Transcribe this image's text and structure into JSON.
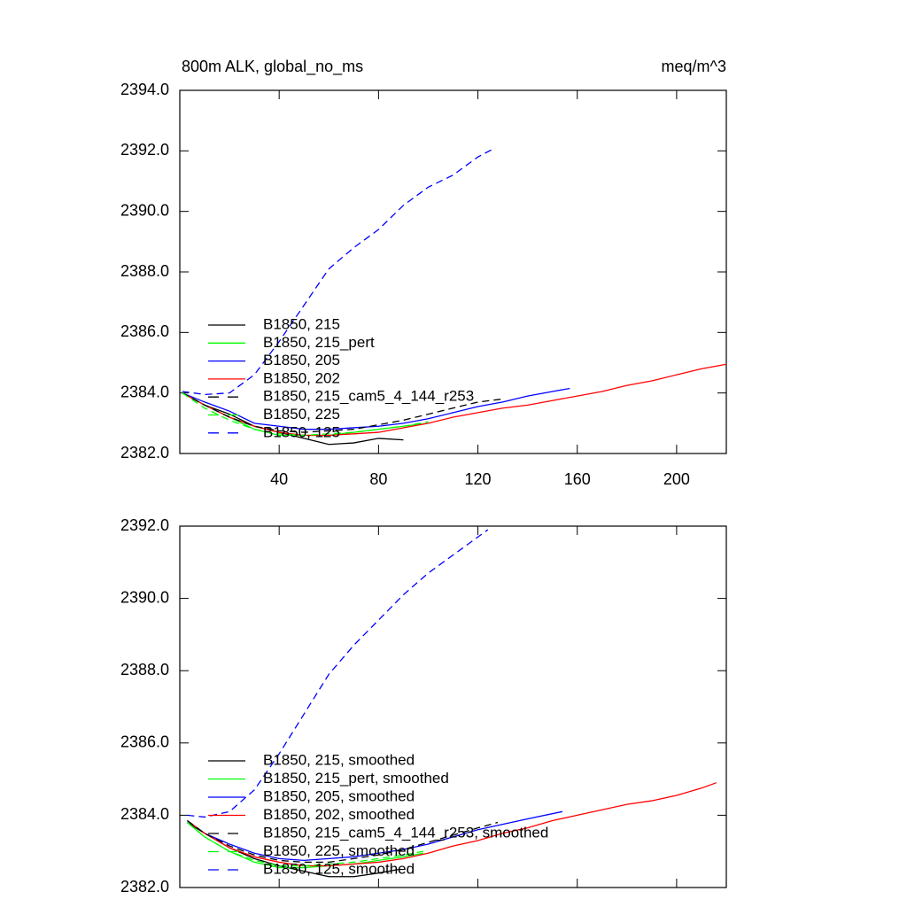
{
  "chart_data": [
    {
      "type": "line",
      "title": "800m ALK, global_no_ms",
      "units": "meq/m^3",
      "xlim": [
        0,
        220
      ],
      "xticks": [
        40,
        80,
        120,
        160,
        200
      ],
      "ylim": [
        2382,
        2394
      ],
      "yticks": [
        {
          "value": 2382,
          "label": "2382.0"
        },
        {
          "value": 2384,
          "label": "2384.0"
        },
        {
          "value": 2386,
          "label": "2386.0"
        },
        {
          "value": 2388,
          "label": "2388.0"
        },
        {
          "value": 2390,
          "label": "2390.0"
        },
        {
          "value": 2392,
          "label": "2392.0"
        },
        {
          "value": 2394,
          "label": "2394.0"
        }
      ],
      "legend": "lower-left",
      "series": [
        {
          "name": "B1850, 215",
          "color": "#000000",
          "dash": "solid",
          "x": [
            1,
            10,
            20,
            30,
            40,
            50,
            60,
            70,
            80,
            90
          ],
          "values": [
            2384.0,
            2383.6,
            2383.3,
            2382.9,
            2382.7,
            2382.5,
            2382.3,
            2382.35,
            2382.5,
            2382.45
          ]
        },
        {
          "name": "B1850, 215_pert",
          "color": "#00ff00",
          "dash": "solid",
          "x": [
            1,
            10,
            20,
            30,
            40,
            50,
            60,
            70,
            80,
            90,
            100
          ],
          "values": [
            2384.0,
            2383.6,
            2383.2,
            2382.8,
            2382.6,
            2382.6,
            2382.6,
            2382.7,
            2382.8,
            2382.9,
            2383.0
          ]
        },
        {
          "name": "B1850, 205",
          "color": "#0000ff",
          "dash": "solid",
          "x": [
            1,
            10,
            20,
            30,
            40,
            50,
            60,
            70,
            80,
            90,
            100,
            110,
            120,
            130,
            140,
            150,
            157
          ],
          "values": [
            2384.0,
            2383.7,
            2383.4,
            2383.0,
            2382.9,
            2382.8,
            2382.8,
            2382.85,
            2382.9,
            2383.0,
            2383.15,
            2383.35,
            2383.55,
            2383.7,
            2383.9,
            2384.05,
            2384.15
          ]
        },
        {
          "name": "B1850, 202",
          "color": "#ff0000",
          "dash": "solid",
          "x": [
            1,
            10,
            20,
            30,
            40,
            50,
            60,
            70,
            80,
            90,
            100,
            110,
            120,
            130,
            140,
            150,
            160,
            170,
            180,
            190,
            200,
            210,
            220
          ],
          "values": [
            2384.0,
            2383.6,
            2383.2,
            2382.9,
            2382.7,
            2382.6,
            2382.6,
            2382.65,
            2382.7,
            2382.85,
            2383.0,
            2383.2,
            2383.35,
            2383.5,
            2383.6,
            2383.75,
            2383.9,
            2384.05,
            2384.25,
            2384.4,
            2384.6,
            2384.8,
            2384.95
          ]
        },
        {
          "name": "B1850, 215_cam5_4_144_r253",
          "color": "#000000",
          "dash": "dashed",
          "x": [
            1,
            10,
            20,
            30,
            40,
            50,
            60,
            70,
            80,
            90,
            100,
            110,
            120,
            130
          ],
          "values": [
            2384.0,
            2383.6,
            2383.2,
            2382.9,
            2382.75,
            2382.7,
            2382.75,
            2382.8,
            2382.95,
            2383.1,
            2383.3,
            2383.5,
            2383.7,
            2383.8
          ]
        },
        {
          "name": "B1850, 225",
          "color": "#00ff00",
          "dash": "dashed",
          "x": [
            1,
            10,
            20,
            30,
            40,
            50,
            60,
            70,
            80,
            90,
            100
          ],
          "values": [
            2384.0,
            2383.5,
            2383.1,
            2382.8,
            2382.65,
            2382.6,
            2382.65,
            2382.7,
            2382.8,
            2382.9,
            2383.05
          ]
        },
        {
          "name": "B1850, 125",
          "color": "#0000ff",
          "dash": "dashed",
          "x": [
            1,
            10,
            20,
            30,
            40,
            50,
            60,
            70,
            80,
            90,
            100,
            110,
            120,
            127
          ],
          "values": [
            2384.05,
            2383.95,
            2384.0,
            2384.6,
            2385.7,
            2386.9,
            2388.1,
            2388.8,
            2389.4,
            2390.2,
            2390.8,
            2391.2,
            2391.8,
            2392.1
          ]
        }
      ]
    },
    {
      "type": "line",
      "xlim": [
        0,
        220
      ],
      "ylim": [
        2382,
        2392
      ],
      "yticks": [
        {
          "value": 2382,
          "label": "2382.0"
        },
        {
          "value": 2384,
          "label": "2384.0"
        },
        {
          "value": 2386,
          "label": "2386.0"
        },
        {
          "value": 2388,
          "label": "2388.0"
        },
        {
          "value": 2390,
          "label": "2390.0"
        },
        {
          "value": 2392,
          "label": "2392.0"
        }
      ],
      "legend": "lower-left",
      "series": [
        {
          "name": "B1850, 215, smoothed",
          "color": "#000000",
          "dash": "solid",
          "x": [
            3,
            10,
            20,
            30,
            40,
            50,
            60,
            70,
            80,
            88
          ],
          "values": [
            2383.8,
            2383.5,
            2383.1,
            2382.8,
            2382.6,
            2382.45,
            2382.3,
            2382.3,
            2382.4,
            2382.5
          ]
        },
        {
          "name": "B1850, 215_pert, smoothed",
          "color": "#00ff00",
          "dash": "solid",
          "x": [
            3,
            10,
            20,
            30,
            40,
            50,
            60,
            70,
            80,
            90,
            98
          ],
          "values": [
            2383.8,
            2383.4,
            2383.0,
            2382.7,
            2382.55,
            2382.55,
            2382.6,
            2382.65,
            2382.75,
            2382.85,
            2382.95
          ]
        },
        {
          "name": "B1850, 205, smoothed",
          "color": "#0000ff",
          "dash": "solid",
          "x": [
            3,
            10,
            20,
            30,
            40,
            50,
            60,
            70,
            80,
            90,
            100,
            110,
            120,
            130,
            140,
            154
          ],
          "values": [
            2383.85,
            2383.5,
            2383.2,
            2382.95,
            2382.8,
            2382.75,
            2382.8,
            2382.85,
            2382.95,
            2383.05,
            2383.2,
            2383.4,
            2383.6,
            2383.75,
            2383.9,
            2384.1
          ]
        },
        {
          "name": "B1850, 202, smoothed",
          "color": "#ff0000",
          "dash": "solid",
          "x": [
            3,
            10,
            20,
            30,
            40,
            50,
            60,
            70,
            80,
            90,
            100,
            110,
            120,
            130,
            140,
            150,
            160,
            170,
            180,
            190,
            200,
            210,
            216
          ],
          "values": [
            2383.85,
            2383.5,
            2383.1,
            2382.85,
            2382.7,
            2382.6,
            2382.6,
            2382.65,
            2382.7,
            2382.8,
            2382.95,
            2383.15,
            2383.3,
            2383.5,
            2383.65,
            2383.85,
            2384.0,
            2384.15,
            2384.3,
            2384.4,
            2384.55,
            2384.75,
            2384.9
          ]
        },
        {
          "name": "B1850, 215_cam5_4_144_r253, smoothed",
          "color": "#000000",
          "dash": "dashed",
          "x": [
            3,
            10,
            20,
            30,
            40,
            50,
            60,
            70,
            80,
            90,
            100,
            110,
            120,
            128
          ],
          "values": [
            2383.85,
            2383.5,
            2383.15,
            2382.9,
            2382.75,
            2382.7,
            2382.7,
            2382.8,
            2382.9,
            2383.05,
            2383.25,
            2383.45,
            2383.65,
            2383.8
          ]
        },
        {
          "name": "B1850, 225, smoothed",
          "color": "#00ff00",
          "dash": "dashed",
          "x": [
            3,
            10,
            20,
            30,
            40,
            50,
            60,
            70,
            80,
            90,
            98
          ],
          "values": [
            2383.8,
            2383.4,
            2383.0,
            2382.75,
            2382.6,
            2382.6,
            2382.65,
            2382.7,
            2382.8,
            2382.9,
            2383.0
          ]
        },
        {
          "name": "B1850, 125, smoothed",
          "color": "#0000ff",
          "dash": "dashed",
          "x": [
            3,
            10,
            20,
            30,
            40,
            50,
            60,
            70,
            80,
            90,
            100,
            110,
            120,
            124
          ],
          "values": [
            2384.0,
            2383.95,
            2384.1,
            2384.7,
            2385.7,
            2386.8,
            2387.9,
            2388.7,
            2389.4,
            2390.1,
            2390.7,
            2391.2,
            2391.7,
            2391.9
          ]
        }
      ]
    }
  ]
}
